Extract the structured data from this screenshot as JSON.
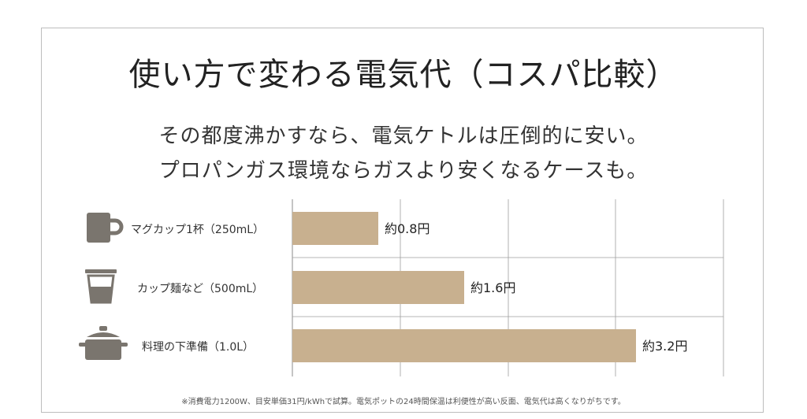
{
  "title": "使い方で変わる電気代（コスパ比較）",
  "subtitle_lines": [
    "その都度沸かすなら、電気ケトルは圧倒的に安い。",
    "プロパンガス環境ならガスより安くなるケースも。"
  ],
  "footnote": "※消費電力1200W、目安単価31円/kWhで試算。電気ポットの24時間保温は利便性が高い反面、電気代は高くなりがちです。",
  "colors": {
    "bar": "#c8b08f",
    "icon": "#7a756e",
    "grid": "#9e9e9e"
  },
  "chart_data": {
    "type": "bar",
    "orientation": "horizontal",
    "categories": [
      "マグカップ1杯（250mL）",
      "カップ麺など（500mL）",
      "料理の下準備（1.0L）"
    ],
    "values": [
      0.8,
      1.6,
      3.2
    ],
    "data_labels": [
      "約0.8円",
      "約1.6円",
      "約3.2円"
    ],
    "icons": [
      "mug-icon",
      "cup-icon",
      "pot-icon"
    ],
    "xlim": [
      0,
      4
    ],
    "grid": true
  }
}
